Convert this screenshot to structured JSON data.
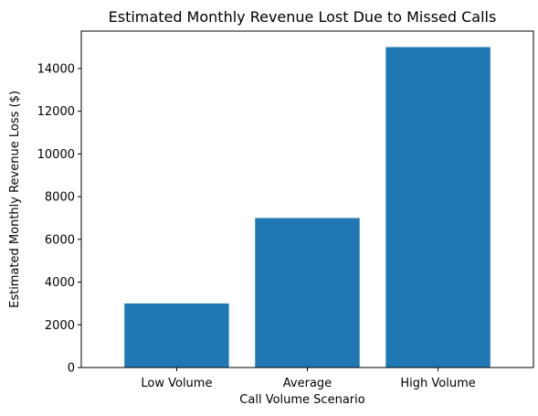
{
  "chart_data": {
    "type": "bar",
    "title": "Estimated Monthly Revenue Lost Due to Missed Calls",
    "xlabel": "Call Volume Scenario",
    "ylabel": "Estimated Monthly Revenue Loss ($)",
    "categories": [
      "Low Volume",
      "Average",
      "High Volume"
    ],
    "values": [
      3000,
      7000,
      15000
    ],
    "ylim": [
      0,
      15750
    ],
    "yticks": [
      0,
      2000,
      4000,
      6000,
      8000,
      10000,
      12000,
      14000
    ],
    "bar_color": "#1f77b4",
    "grid": false,
    "legend": "none"
  }
}
